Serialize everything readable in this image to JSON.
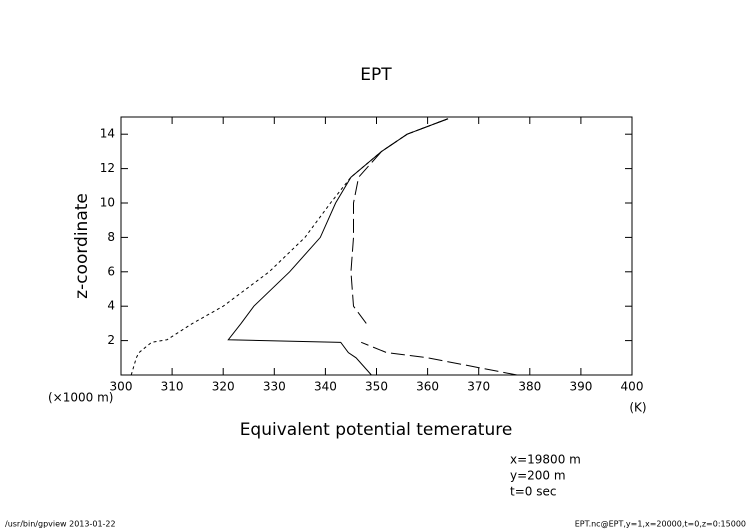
{
  "chart_data": {
    "type": "line",
    "title": "EPT",
    "x_label": "Equivalent potential temerature",
    "y_label": "z-coordinate",
    "y_unit": "(×1000 m)",
    "x_unit": "(K)",
    "annotations": [
      "x=19800 m",
      "y=200 m",
      "t=0 sec"
    ],
    "footer_left": "/usr/bin/gpview  2013-01-22",
    "footer_right": "EPT.nc@EPT,y=1,x=20000,t=0,z=0:15000",
    "y": [
      0,
      1,
      1.3,
      1.9,
      2.05,
      3,
      4,
      6,
      8,
      10,
      11.5,
      13,
      14,
      14.9
    ],
    "series": [
      {
        "name": "solid",
        "color": "#000000",
        "dash": "none",
        "values": [
          349,
          346,
          344.5,
          343,
          321,
          323.5,
          326,
          333,
          339,
          342,
          345,
          351,
          356,
          364
        ]
      },
      {
        "name": "short-dash",
        "color": "#000000",
        "dash": "3,3",
        "values": [
          302,
          303,
          303.5,
          306,
          309,
          314,
          320,
          329,
          336,
          341,
          345,
          351,
          356,
          364
        ]
      },
      {
        "name": "long-dash",
        "color": "#000000",
        "dash": "14,5",
        "values": [
          377.5,
          360,
          352,
          347,
          null,
          348,
          345.5,
          345,
          345.5,
          345.5,
          346.5,
          351,
          356,
          364
        ]
      }
    ],
    "xlim": [
      300,
      400
    ],
    "xticks": [
      300,
      310,
      320,
      330,
      340,
      350,
      360,
      370,
      380,
      390,
      400
    ],
    "ylim": [
      0,
      15
    ],
    "yticks": [
      2,
      4,
      6,
      8,
      10,
      12,
      14
    ]
  }
}
